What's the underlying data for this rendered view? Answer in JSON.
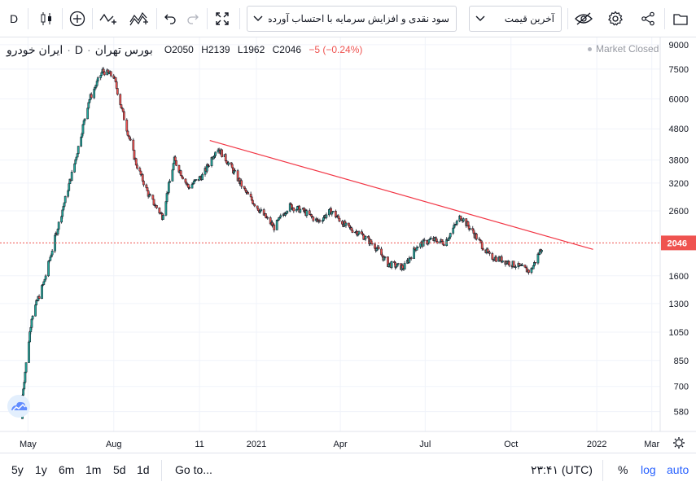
{
  "toolbar": {
    "interval": "D",
    "symbol_search_text": "سود نقدی و افزایش سرمایه با احتساب آورده",
    "price_type_text": "آخرین قیمت",
    "icons": [
      "candles-icon",
      "plus-circle-icon",
      "indicators-icon",
      "compare-icon",
      "undo-icon",
      "redo-icon",
      "fullscreen-icon",
      "chevron-down-icon",
      "chevron-down-icon",
      "eye-slash-icon",
      "gear-icon",
      "share-icon",
      "snapshot-icon"
    ]
  },
  "legend": {
    "symbol": "ایران خودرو",
    "separator": "·",
    "interval": "D",
    "exchange": "بورس تهران",
    "open": "O2050",
    "high": "H2139",
    "low": "L1962",
    "close": "C2046",
    "change": "−5 (−0.24%)"
  },
  "status": {
    "market": "Market Closed"
  },
  "price_axis": {
    "ticks": [
      "9000",
      "7500",
      "6000",
      "4800",
      "3800",
      "3200",
      "2600",
      "2046",
      "1600",
      "1300",
      "1050",
      "850",
      "700",
      "580"
    ],
    "last_price": "2046",
    "last_price_color": "#ef5350"
  },
  "time_axis": {
    "ticks": [
      "May",
      "Aug",
      "11",
      "2021",
      "Apr",
      "Jul",
      "Oct",
      "2022",
      "Mar"
    ]
  },
  "bottom": {
    "ranges": [
      "5y",
      "1y",
      "6m",
      "1m",
      "5d",
      "1d"
    ],
    "goto": "Go to...",
    "clock": "۲۳:۴۱ (UTC)",
    "percent": "%",
    "log": "log",
    "auto": "auto"
  },
  "chart_data": {
    "type": "candlestick",
    "scale": "log",
    "x_range": [
      "2020-04",
      "2022-03"
    ],
    "y_range": [
      500,
      9500
    ],
    "up_color": "#26a69a",
    "down_color": "#ef5350",
    "trendline": {
      "color": "#f23645",
      "from": [
        "2020-11-12",
        4400
      ],
      "to": [
        "2021-12-28",
        1950
      ]
    },
    "last_price_line": 2046,
    "closes": [
      [
        "2020-04-22",
        550
      ],
      [
        "2020-05-05",
        1180
      ],
      [
        "2020-05-18",
        1520
      ],
      [
        "2020-06-02",
        2300
      ],
      [
        "2020-06-20",
        3700
      ],
      [
        "2020-07-05",
        5900
      ],
      [
        "2020-07-20",
        7400
      ],
      [
        "2020-08-01",
        7100
      ],
      [
        "2020-08-12",
        5200
      ],
      [
        "2020-08-25",
        3700
      ],
      [
        "2020-09-08",
        2900
      ],
      [
        "2020-09-22",
        2500
      ],
      [
        "2020-10-05",
        3800
      ],
      [
        "2020-10-20",
        3100
      ],
      [
        "2020-11-05",
        3400
      ],
      [
        "2020-11-20",
        4200
      ],
      [
        "2020-12-05",
        3600
      ],
      [
        "2020-12-20",
        3000
      ],
      [
        "2021-01-05",
        2600
      ],
      [
        "2021-01-20",
        2300
      ],
      [
        "2021-02-05",
        2700
      ],
      [
        "2021-02-20",
        2600
      ],
      [
        "2021-03-08",
        2400
      ],
      [
        "2021-03-22",
        2600
      ],
      [
        "2021-04-08",
        2300
      ],
      [
        "2021-04-22",
        2200
      ],
      [
        "2021-05-08",
        2000
      ],
      [
        "2021-05-22",
        1750
      ],
      [
        "2021-06-08",
        1700
      ],
      [
        "2021-06-22",
        2000
      ],
      [
        "2021-07-08",
        2100
      ],
      [
        "2021-07-22",
        2050
      ],
      [
        "2021-08-08",
        2500
      ],
      [
        "2021-08-22",
        2200
      ],
      [
        "2021-09-08",
        1850
      ],
      [
        "2021-09-22",
        1800
      ],
      [
        "2021-10-08",
        1720
      ],
      [
        "2021-10-22",
        1650
      ],
      [
        "2021-11-05",
        2046
      ]
    ]
  }
}
